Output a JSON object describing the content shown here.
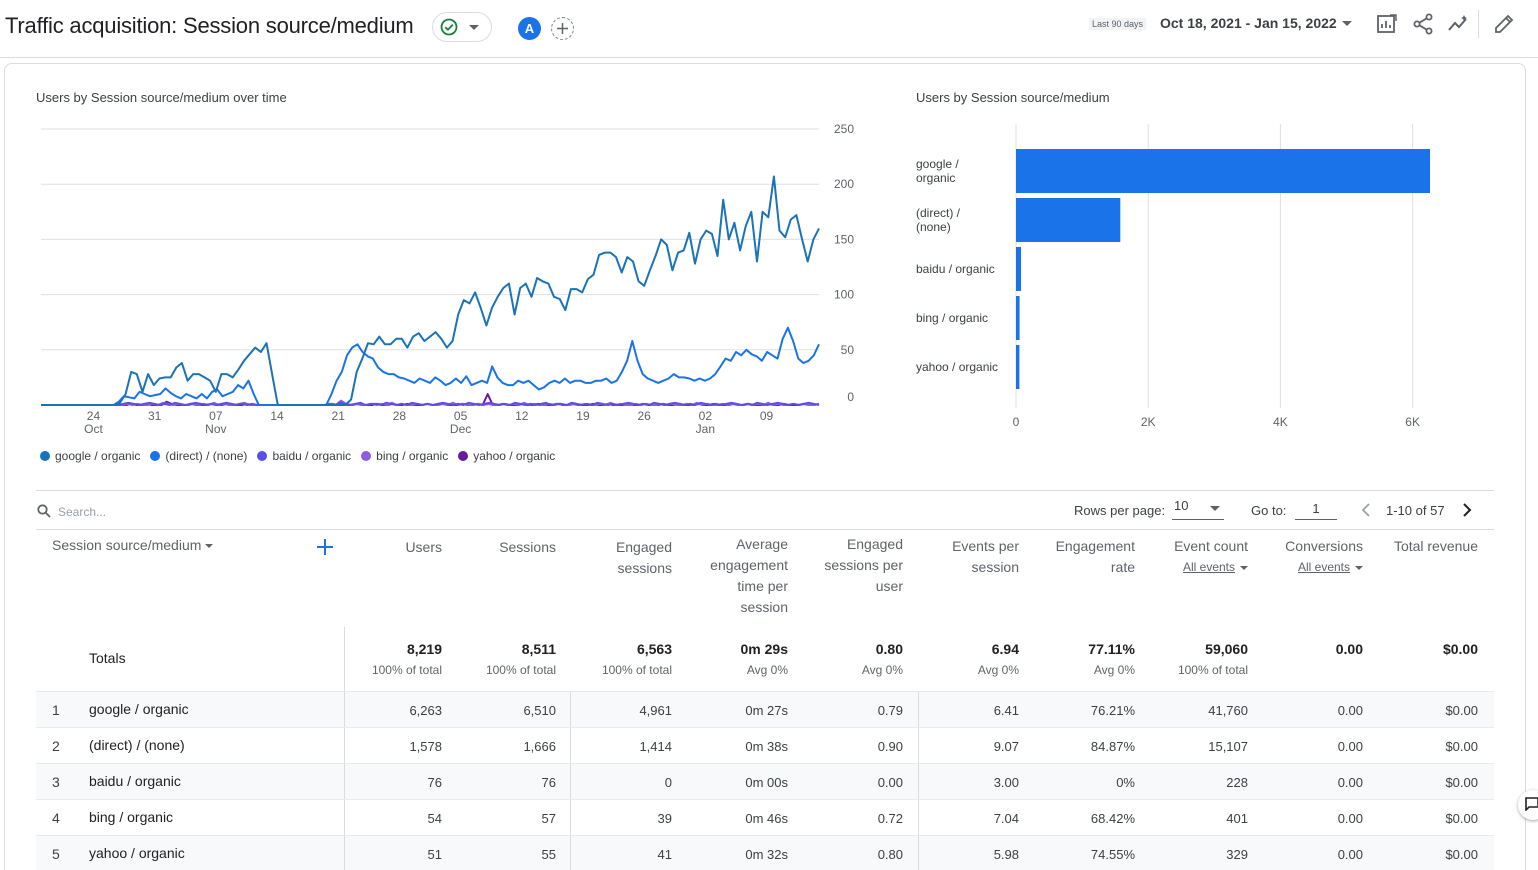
{
  "header": {
    "title": "Traffic acquisition: Session source/medium",
    "avatar_letter": "A",
    "date_label": "Last 90 days",
    "date_range": "Oct 18, 2021 - Jan 15, 2022",
    "icons": [
      "check-circle-icon",
      "add-comparison-icon",
      "customize-report-icon",
      "share-icon",
      "insights-icon",
      "edit-icon"
    ]
  },
  "line_chart": {
    "title": "Users by Session source/medium over time"
  },
  "bar_chart": {
    "title": "Users by Session source/medium"
  },
  "legend": [
    {
      "label": "google / organic",
      "color": "#1a73b8"
    },
    {
      "label": "(direct) / (none)",
      "color": "#1a73e8"
    },
    {
      "label": "baidu / organic",
      "color": "#5a4fe6"
    },
    {
      "label": "bing / organic",
      "color": "#8e5ce0"
    },
    {
      "label": "yahoo / organic",
      "color": "#6a1b9a"
    }
  ],
  "chart_data": [
    {
      "type": "line",
      "title": "Users by Session source/medium over time",
      "x_ticks": [
        {
          "day": "24",
          "month": "Oct"
        },
        {
          "day": "31",
          "month": ""
        },
        {
          "day": "07",
          "month": "Nov"
        },
        {
          "day": "14",
          "month": ""
        },
        {
          "day": "21",
          "month": ""
        },
        {
          "day": "28",
          "month": ""
        },
        {
          "day": "05",
          "month": "Dec"
        },
        {
          "day": "12",
          "month": ""
        },
        {
          "day": "19",
          "month": ""
        },
        {
          "day": "26",
          "month": ""
        },
        {
          "day": "02",
          "month": "Jan"
        },
        {
          "day": "09",
          "month": ""
        }
      ],
      "y_ticks": [
        "250",
        "200",
        "150",
        "100",
        "50",
        "0"
      ],
      "ylim": [
        0,
        250
      ],
      "grid": true,
      "series": [
        {
          "name": "google / organic",
          "color": "#1a73b8",
          "values": [
            0,
            0,
            0,
            0,
            0,
            0,
            0,
            0,
            0,
            0,
            0,
            0,
            0,
            0,
            2,
            10,
            30,
            28,
            12,
            28,
            18,
            24,
            25,
            25,
            34,
            38,
            22,
            28,
            28,
            25,
            22,
            12,
            28,
            28,
            25,
            32,
            40,
            46,
            52,
            48,
            56,
            28,
            0,
            0,
            0,
            0,
            0,
            0,
            0,
            0,
            0,
            0,
            0,
            0,
            0,
            5,
            30,
            42,
            56,
            55,
            62,
            55,
            55,
            60,
            60,
            52,
            62,
            65,
            58,
            62,
            66,
            60,
            52,
            58,
            82,
            95,
            92,
            102,
            88,
            72,
            88,
            98,
            106,
            110,
            82,
            106,
            110,
            98,
            115,
            112,
            110,
            98,
            96,
            86,
            105,
            105,
            102,
            114,
            118,
            136,
            138,
            138,
            134,
            120,
            134,
            130,
            112,
            108,
            122,
            135,
            150,
            145,
            122,
            138,
            140,
            156,
            128,
            150,
            158,
            155,
            135,
            186,
            150,
            165,
            140,
            162,
            175,
            130,
            175,
            170,
            207,
            158,
            152,
            168,
            172,
            150,
            130,
            150,
            160
          ],
          "color_note": ""
        },
        {
          "name": "(direct) / (none)",
          "color": "#1a73e8",
          "values": [
            0,
            0,
            0,
            0,
            0,
            0,
            0,
            0,
            0,
            0,
            0,
            0,
            0,
            0,
            0,
            3,
            8,
            7,
            6,
            12,
            10,
            8,
            9,
            10,
            15,
            11,
            8,
            6,
            10,
            8,
            6,
            10,
            6,
            12,
            14,
            8,
            10,
            12,
            18,
            15,
            22,
            10,
            0,
            0,
            0,
            0,
            0,
            0,
            0,
            0,
            0,
            0,
            0,
            0,
            0,
            0,
            10,
            22,
            30,
            45,
            52,
            55,
            48,
            44,
            42,
            34,
            30,
            28,
            28,
            25,
            24,
            22,
            20,
            24,
            22,
            20,
            25,
            22,
            18,
            20,
            24,
            20,
            26,
            18,
            20,
            22,
            20,
            35,
            25,
            20,
            18,
            18,
            22,
            20,
            22,
            18,
            14,
            16,
            20,
            22,
            20,
            24,
            20,
            22,
            22,
            20,
            20,
            22,
            22,
            24,
            20,
            22,
            30,
            40,
            58,
            40,
            28,
            24,
            22,
            20,
            22,
            24,
            28,
            25,
            25,
            24,
            22,
            24,
            22,
            24,
            28,
            35,
            42,
            40,
            48,
            45,
            50,
            46,
            44,
            40,
            48,
            45,
            42,
            60,
            70,
            58,
            42,
            38,
            40,
            45,
            55
          ]
        },
        {
          "name": "baidu / organic",
          "color": "#5a4fe6",
          "values": [
            0,
            0,
            0,
            0,
            0,
            0,
            0,
            0,
            0,
            0,
            0,
            0,
            0,
            0,
            0,
            0,
            1,
            2,
            1,
            0,
            1,
            2,
            1,
            0,
            1,
            0,
            2,
            1,
            0,
            1,
            2,
            1,
            0,
            1,
            0,
            1,
            2,
            1,
            0,
            1,
            0,
            1,
            0,
            0,
            0,
            0,
            0,
            0,
            0,
            0,
            0,
            0,
            0,
            0,
            0,
            0,
            1,
            0,
            2,
            1,
            0,
            1,
            2,
            0,
            1,
            1,
            0,
            2,
            1,
            0,
            1,
            0,
            2,
            1,
            0,
            1,
            0,
            1,
            2,
            1,
            0,
            1,
            0,
            2,
            1,
            0,
            1,
            2,
            1,
            0,
            1,
            0,
            2,
            1,
            0,
            1,
            0,
            1,
            2,
            0,
            1,
            1,
            0,
            2,
            1,
            0,
            1,
            0,
            2,
            1,
            0,
            1,
            0,
            1,
            2,
            1,
            0,
            1,
            0,
            2,
            1,
            0,
            1,
            2,
            1,
            0,
            1,
            0,
            2,
            1,
            0,
            1,
            0,
            1,
            2,
            1,
            0,
            1,
            0,
            2,
            1,
            0,
            1,
            2,
            1,
            0,
            1,
            0,
            1,
            2,
            1,
            0
          ]
        },
        {
          "name": "bing / organic",
          "color": "#8e5ce0",
          "values": [
            0,
            0,
            0,
            0,
            0,
            0,
            0,
            0,
            0,
            0,
            0,
            0,
            0,
            0,
            0,
            0,
            0,
            1,
            0,
            1,
            0,
            0,
            1,
            0,
            2,
            1,
            0,
            1,
            0,
            0,
            1,
            0,
            1,
            0,
            2,
            0,
            1,
            0,
            0,
            1,
            2,
            0,
            0,
            0,
            0,
            0,
            0,
            0,
            0,
            0,
            0,
            0,
            0,
            0,
            0,
            0,
            0,
            1,
            0,
            4,
            1,
            0,
            1,
            0,
            0,
            1,
            0,
            1,
            0,
            2,
            0,
            1,
            0,
            0,
            1,
            0,
            1,
            0,
            0,
            1,
            0,
            2,
            0,
            1,
            0,
            0,
            1,
            0,
            1,
            0,
            0,
            1,
            0,
            1,
            0,
            2,
            0,
            1,
            0,
            0,
            1,
            0,
            1,
            0,
            0,
            1,
            0,
            1,
            0,
            0,
            1,
            0,
            2,
            0,
            1,
            0,
            0,
            1,
            0,
            1,
            0,
            0,
            1,
            0,
            1,
            0,
            0,
            1,
            0,
            2,
            0,
            1,
            0,
            0,
            1,
            0,
            1,
            0,
            0,
            1,
            0,
            1,
            0,
            2,
            0,
            1,
            0,
            0,
            1,
            0,
            1,
            0,
            0,
            1
          ]
        },
        {
          "name": "yahoo / organic",
          "color": "#6a1b9a",
          "values": [
            0,
            0,
            0,
            0,
            0,
            0,
            0,
            0,
            0,
            0,
            0,
            0,
            0,
            0,
            0,
            0,
            0,
            0,
            1,
            0,
            0,
            1,
            0,
            0,
            0,
            3,
            1,
            0,
            0,
            0,
            1,
            0,
            0,
            0,
            1,
            0,
            0,
            1,
            0,
            0,
            0,
            1,
            0,
            0,
            0,
            0,
            0,
            0,
            0,
            0,
            0,
            0,
            0,
            0,
            0,
            0,
            0,
            0,
            1,
            0,
            2,
            0,
            0,
            1,
            0,
            0,
            0,
            1,
            0,
            0,
            1,
            0,
            0,
            1,
            0,
            0,
            0,
            1,
            0,
            0,
            1,
            0,
            0,
            0,
            1,
            0,
            0,
            1,
            0,
            10,
            0,
            0,
            1,
            0,
            0,
            0,
            1,
            0,
            0,
            1,
            0,
            0,
            0,
            1,
            0,
            0,
            1,
            0,
            0,
            0,
            1,
            0,
            0,
            1,
            0,
            0,
            0,
            1,
            0,
            0,
            1,
            0,
            0,
            0,
            1,
            0,
            0,
            1,
            0,
            0,
            0,
            1,
            0,
            0,
            1,
            0,
            0,
            0,
            1,
            0,
            0,
            1,
            0,
            0,
            0,
            1,
            0,
            0,
            1,
            0,
            0,
            0,
            1,
            0,
            0,
            1
          ]
        }
      ]
    },
    {
      "type": "bar",
      "title": "Users by Session source/medium",
      "orientation": "horizontal",
      "categories": [
        [
          "google /",
          "organic"
        ],
        [
          "(direct) /",
          "(none)"
        ],
        [
          "baidu / organic"
        ],
        [
          "bing / organic"
        ],
        [
          "yahoo / organic"
        ]
      ],
      "values": [
        6263,
        1578,
        76,
        54,
        51
      ],
      "color": "#1a73e8",
      "x_ticks": [
        "0",
        "2K",
        "4K",
        "6K"
      ],
      "xlim": [
        0,
        7000
      ],
      "grid": true
    }
  ],
  "table_toolbar": {
    "search_placeholder": "Search...",
    "rows_per_page_label": "Rows per page:",
    "rows_per_page_value": "10",
    "goto_label": "Go to:",
    "goto_value": "1",
    "page_range": "1-10 of 57"
  },
  "table": {
    "dimension_header": "Session source/medium",
    "headers": [
      [
        "Users"
      ],
      [
        "Sessions"
      ],
      [
        "Engaged",
        "sessions"
      ],
      [
        "Average",
        "engagement",
        "time per",
        "session"
      ],
      [
        "Engaged",
        "sessions per",
        "user"
      ],
      [
        "Events per",
        "session"
      ],
      [
        "Engagement",
        "rate"
      ],
      [
        "Event count"
      ],
      [
        "Conversions"
      ],
      [
        "Total revenue"
      ]
    ],
    "event_count_filter": "All events",
    "conversions_filter": "All events",
    "totals_label": "Totals",
    "totals": [
      {
        "value": "8,219",
        "sub": "100% of total"
      },
      {
        "value": "8,511",
        "sub": "100% of total"
      },
      {
        "value": "6,563",
        "sub": "100% of total"
      },
      {
        "value": "0m 29s",
        "sub": "Avg 0%"
      },
      {
        "value": "0.80",
        "sub": "Avg 0%"
      },
      {
        "value": "6.94",
        "sub": "Avg 0%"
      },
      {
        "value": "77.11%",
        "sub": "Avg 0%"
      },
      {
        "value": "59,060",
        "sub": "100% of total"
      },
      {
        "value": "0.00",
        "sub": ""
      },
      {
        "value": "$0.00",
        "sub": ""
      }
    ],
    "rows": [
      {
        "index": "1",
        "dimension": "google / organic",
        "cells": [
          "6,263",
          "6,510",
          "4,961",
          "0m 27s",
          "0.79",
          "6.41",
          "76.21%",
          "41,760",
          "0.00",
          "$0.00"
        ]
      },
      {
        "index": "2",
        "dimension": "(direct) / (none)",
        "cells": [
          "1,578",
          "1,666",
          "1,414",
          "0m 38s",
          "0.90",
          "9.07",
          "84.87%",
          "15,107",
          "0.00",
          "$0.00"
        ]
      },
      {
        "index": "3",
        "dimension": "baidu / organic",
        "cells": [
          "76",
          "76",
          "0",
          "0m 00s",
          "0.00",
          "3.00",
          "0%",
          "228",
          "0.00",
          "$0.00"
        ]
      },
      {
        "index": "4",
        "dimension": "bing / organic",
        "cells": [
          "54",
          "57",
          "39",
          "0m 46s",
          "0.72",
          "7.04",
          "68.42%",
          "401",
          "0.00",
          "$0.00"
        ]
      },
      {
        "index": "5",
        "dimension": "yahoo / organic",
        "cells": [
          "51",
          "55",
          "41",
          "0m 32s",
          "0.80",
          "5.98",
          "74.55%",
          "329",
          "0.00",
          "$0.00"
        ]
      }
    ]
  }
}
